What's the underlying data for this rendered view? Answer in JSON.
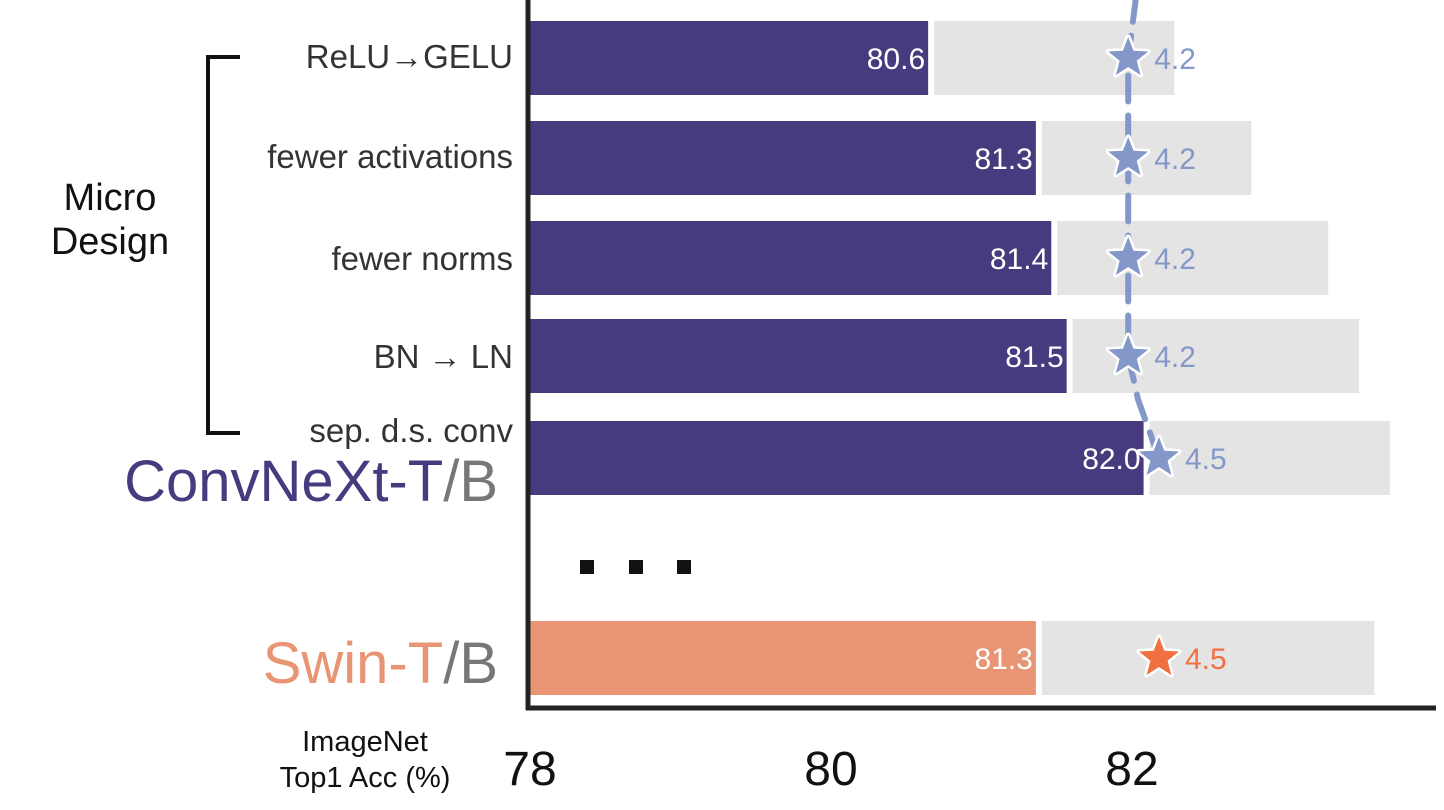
{
  "chart_data": {
    "type": "bar",
    "orientation": "horizontal",
    "categories": [
      "ReLU→GELU",
      "fewer activations",
      "fewer norms",
      "BN → LN",
      "sep. d.s. conv",
      "Swin-T/B"
    ],
    "series": [
      {
        "values": [
          80.6,
          81.3,
          81.4,
          81.5,
          82.0,
          81.3
        ]
      },
      {
        "values": [
          4.2,
          4.2,
          4.2,
          4.2,
          4.5,
          4.5
        ]
      }
    ],
    "background_bar_values": [
      82.2,
      82.7,
      83.2,
      83.4,
      83.6,
      83.5
    ],
    "star_x_values": [
      81.9,
      81.9,
      81.9,
      81.9,
      82.1,
      82.1
    ],
    "xlim": [
      78,
      83.9
    ],
    "xticks": [
      "78",
      "80",
      "82"
    ],
    "xlabel_lines": [
      "ImageNet",
      "Top1 Acc (%)"
    ],
    "group_label_lines": [
      "Micro",
      "Design"
    ],
    "model_labels": [
      {
        "primary": "ConvNeXt-T",
        "separator": "/",
        "secondary": "B"
      },
      {
        "primary": "Swin-T",
        "separator": "/",
        "secondary": "B"
      }
    ],
    "ellipsis": "...",
    "colors": {
      "convnext": "#473a7e",
      "swin": "#e99573",
      "background_bar": "#e4e4e4",
      "trend_line": "#8497c9",
      "star_convnext": "#8497c9",
      "star_swin": "#f07042",
      "model_secondary": "#777777"
    },
    "grid": false,
    "legend": "none"
  }
}
